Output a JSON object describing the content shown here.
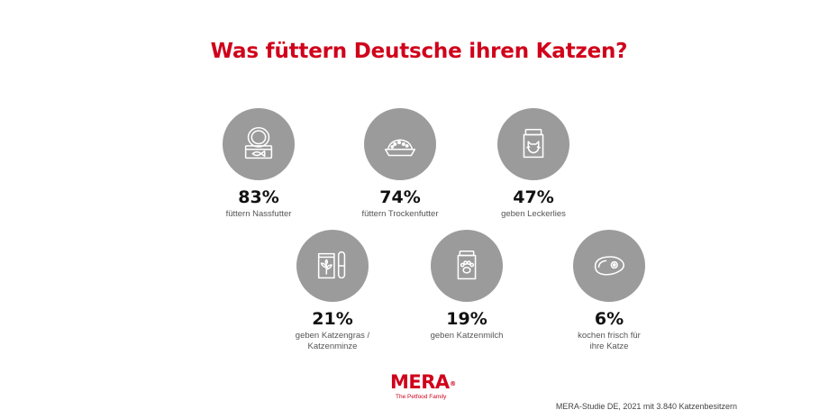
{
  "title": "Was füttern Deutsche ihren Katzen?",
  "stats": [
    {
      "icon": "wet-food-can-icon",
      "value": "83%",
      "label_lines": [
        "füttern Nassfutter"
      ]
    },
    {
      "icon": "dry-food-bowl-icon",
      "value": "74%",
      "label_lines": [
        "füttern Trockenfutter"
      ]
    },
    {
      "icon": "treat-bag-icon",
      "value": "47%",
      "label_lines": [
        "geben Leckerlies"
      ]
    },
    {
      "icon": "cat-grass-icon",
      "value": "21%",
      "label_lines": [
        "geben Katzengras /",
        "Katzenminze"
      ]
    },
    {
      "icon": "cat-milk-jar-icon",
      "value": "19%",
      "label_lines": [
        "geben Katzenmilch"
      ]
    },
    {
      "icon": "meat-steak-icon",
      "value": "6%",
      "label_lines": [
        "kochen frisch für",
        "ihre Katze"
      ]
    }
  ],
  "logo": {
    "brand": "MERA",
    "registered": "®",
    "tagline": "The Petfood Family"
  },
  "source": "MERA-Studie DE, 2021 mit 3.840 Katzenbesitzern",
  "colors": {
    "accent": "#d0021b",
    "icon_circle": "#9b9b9b"
  }
}
